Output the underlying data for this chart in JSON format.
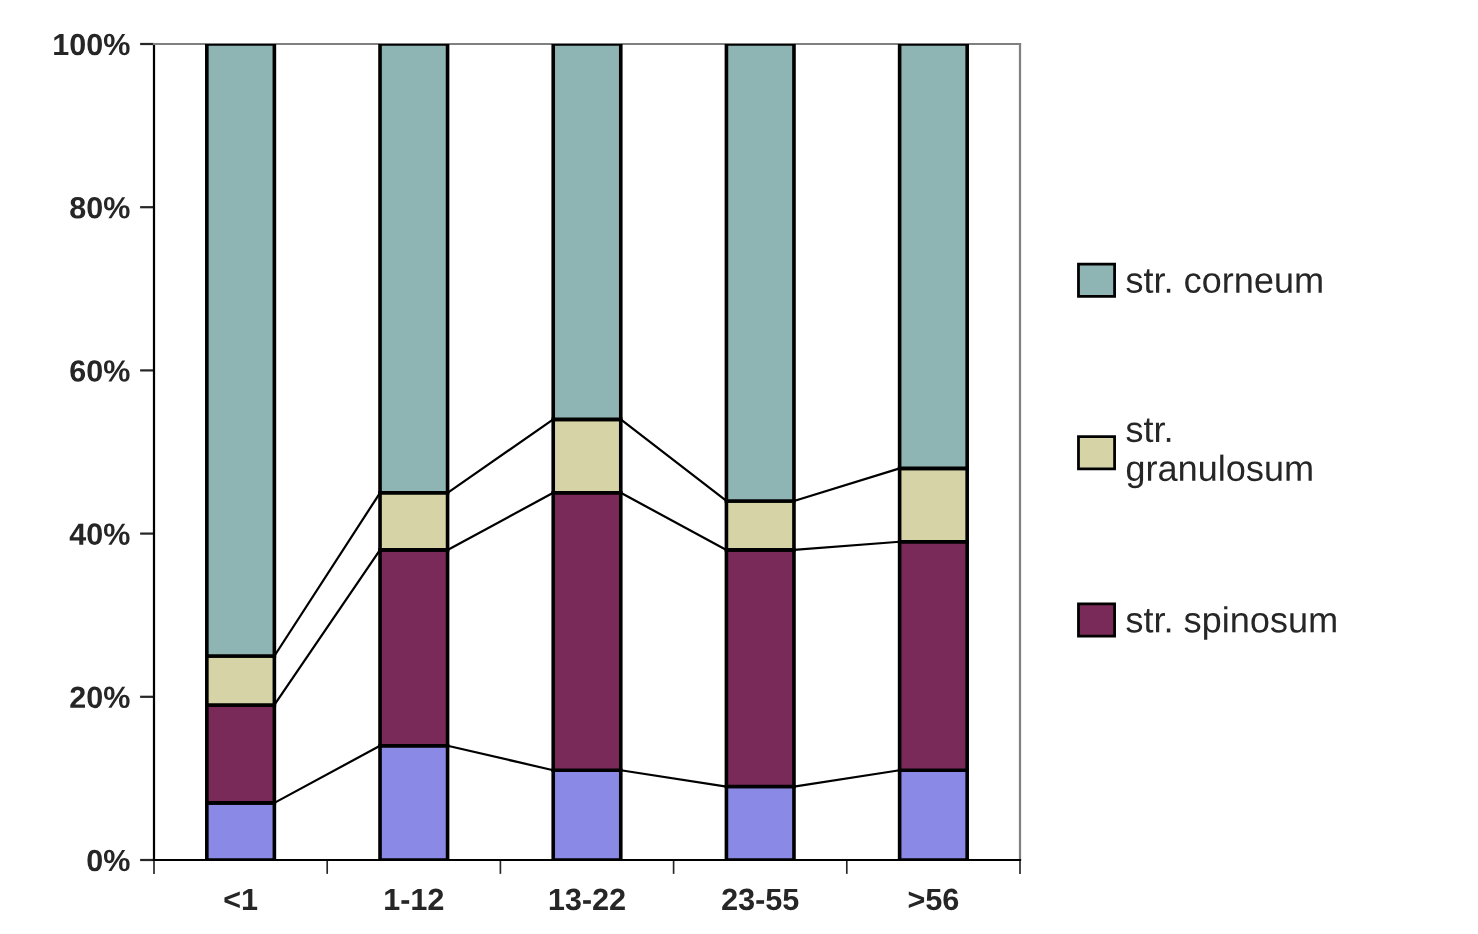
{
  "chart_data": {
    "type": "bar",
    "stacked": true,
    "categories": [
      "<1",
      "1-12",
      "13-22",
      "23-55",
      ">56"
    ],
    "series": [
      {
        "color": "#8a8ae6",
        "values": [
          7,
          14,
          11,
          9,
          11
        ]
      },
      {
        "name": "str. spinosum",
        "color": "#7a2a58",
        "values": [
          12,
          24,
          34,
          29,
          28
        ]
      },
      {
        "name": "str. granulosum",
        "color": "#d6d4a6",
        "values": [
          6,
          7,
          9,
          6,
          9
        ]
      },
      {
        "name": "str. corneum",
        "color": "#8fb4b4",
        "values": [
          75,
          55,
          46,
          56,
          52
        ]
      }
    ],
    "ylim": [
      0,
      100
    ],
    "yticks": [
      {
        "value": 0,
        "label": "0%"
      },
      {
        "value": 20,
        "label": "20%"
      },
      {
        "value": 40,
        "label": "40%"
      },
      {
        "value": 60,
        "label": "60%"
      },
      {
        "value": 80,
        "label": "80%"
      },
      {
        "value": 100,
        "label": "100%"
      }
    ],
    "grid": false,
    "legend": "right"
  }
}
